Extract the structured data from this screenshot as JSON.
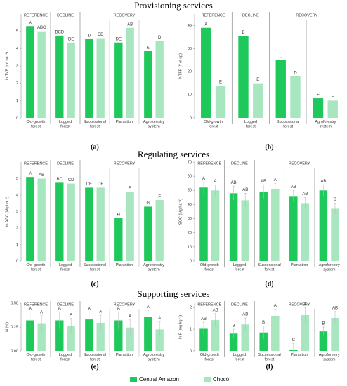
{
  "section_titles": [
    "Provisioning services",
    "Regulating services",
    "Supporting services"
  ],
  "legend": [
    {
      "name": "Central Amazon",
      "color": "#1ec85a"
    },
    {
      "name": "Chocó",
      "color": "#a8e6c0"
    }
  ],
  "group_labels": [
    "REFERENCE",
    "DECLINE",
    "RECOVERY"
  ],
  "chart_data": [
    {
      "type": "bar",
      "panel": "(a)",
      "y_label": "ln TVP (m³ ha⁻¹)",
      "categories": [
        "Old-growth forest",
        "Logged forest",
        "Successional forest",
        "Plantation",
        "Agroforestry system"
      ],
      "ylim": [
        0,
        6
      ],
      "yticks": [
        0,
        1,
        2,
        3,
        4,
        5
      ],
      "series": [
        {
          "values": [
            5.3,
            4.75,
            4.55,
            4.35,
            3.85
          ],
          "letters": [
            "A",
            "BCD",
            "D",
            "DE",
            "E"
          ]
        },
        {
          "values": [
            5.0,
            4.35,
            4.6,
            5.2,
            4.45
          ],
          "letters": [
            "ABC",
            "DE",
            "CD",
            "AB",
            "D"
          ]
        }
      ]
    },
    {
      "type": "bar",
      "panel": "(b)",
      "y_label": "NTFP (# of sp)",
      "categories": [
        "Old-growth forest",
        "Logged forest",
        "Successional forest",
        "Agroforestry system"
      ],
      "ylim": [
        0,
        45
      ],
      "yticks": [
        0,
        10,
        20,
        30,
        40
      ],
      "series": [
        {
          "values": [
            39,
            35.5,
            25,
            8.5
          ],
          "letters": [
            "A",
            "B",
            "C",
            "F"
          ]
        },
        {
          "values": [
            14,
            15,
            18,
            7.5
          ],
          "letters": [
            "E",
            "E",
            "D",
            "F"
          ]
        }
      ]
    },
    {
      "type": "bar",
      "panel": "(c)",
      "y_label": "ln AGC (Mg ha⁻¹)",
      "categories": [
        "Old-growth forest",
        "Logged forest",
        "Successional forest",
        "Plantation",
        "Agroforestry system"
      ],
      "ylim": [
        0,
        6
      ],
      "yticks": [
        0,
        1,
        2,
        3,
        4,
        5
      ],
      "series": [
        {
          "values": [
            5.1,
            4.75,
            4.45,
            2.6,
            3.3
          ],
          "letters": [
            "A",
            "BC",
            "DE",
            "H",
            "G"
          ]
        },
        {
          "values": [
            5.0,
            4.7,
            4.45,
            4.2,
            3.7
          ],
          "letters": [
            "AB",
            "CD",
            "DE",
            "E",
            "F"
          ]
        }
      ]
    },
    {
      "type": "bar",
      "panel": "(d)",
      "y_label": "SOC (Mg ha⁻¹)",
      "categories": [
        "Old-growth forest",
        "Logged forest",
        "Successional forest",
        "Plantation",
        "Agroforestry system"
      ],
      "ylim": [
        0,
        70
      ],
      "yticks": [
        0,
        10,
        20,
        30,
        40,
        50,
        60,
        70
      ],
      "series": [
        {
          "values": [
            52,
            48,
            49,
            46,
            50
          ],
          "errors": [
            4,
            5,
            5,
            4,
            4
          ],
          "letters": [
            "A",
            "AB",
            "AB",
            "AB",
            "AB"
          ]
        },
        {
          "values": [
            50,
            43,
            51,
            41,
            37
          ],
          "errors": [
            4,
            5,
            4,
            4,
            4
          ],
          "letters": [
            "A",
            "AB",
            "A",
            "AB",
            "B"
          ]
        }
      ]
    },
    {
      "type": "bar",
      "panel": "(e)",
      "y_label": "N (%)",
      "categories": [
        "Old-growth forest",
        "Logged forest",
        "Successional forest",
        "Plantation",
        "Agroforestry system"
      ],
      "ylim": [
        0,
        0.5
      ],
      "yticks": [
        {
          "value": 0,
          "label": "0.00"
        },
        {
          "value": 0.25,
          "label": "0.25"
        },
        {
          "value": 0.5,
          "label": "0.50"
        }
      ],
      "series": [
        {
          "values": [
            0.32,
            0.32,
            0.33,
            0.32,
            0.355
          ],
          "errors": [
            0.09,
            0.09,
            0.08,
            0.09,
            0.07
          ],
          "letters": [
            "A",
            "A",
            "A",
            "A",
            "A"
          ]
        },
        {
          "values": [
            0.29,
            0.26,
            0.295,
            0.245,
            0.225
          ],
          "errors": [
            0.08,
            0.08,
            0.08,
            0.08,
            0.08
          ],
          "letters": [
            "A",
            "A",
            "A",
            "A",
            "A"
          ]
        }
      ]
    },
    {
      "type": "bar",
      "panel": "(f)",
      "y_label": "ln P (mg kg⁻¹)",
      "categories": [
        "Old-growth forest",
        "Logged forest",
        "Successional forest",
        "Plantation",
        "Agroforestry system"
      ],
      "ylim": [
        0,
        2.2
      ],
      "yticks": [
        0,
        1,
        2
      ],
      "series": [
        {
          "values": [
            1.02,
            0.8,
            0.85,
            0.05,
            0.9
          ],
          "errors": [
            0.3,
            0.2,
            0.3,
            0.3,
            0.2
          ],
          "letters": [
            "AB",
            "B",
            "B",
            "C",
            "B"
          ]
        },
        {
          "values": [
            1.42,
            1.22,
            1.62,
            1.65,
            1.52
          ],
          "errors": [
            0.3,
            0.3,
            0.3,
            0.35,
            0.3
          ],
          "letters": [
            "AB",
            "AB",
            "A",
            "A",
            "AB"
          ]
        }
      ]
    }
  ]
}
